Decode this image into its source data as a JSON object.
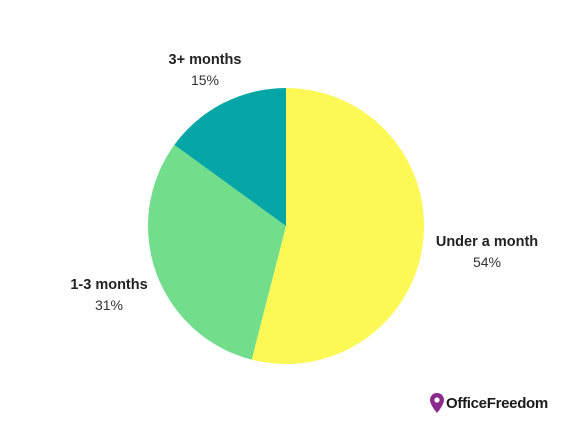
{
  "chart_data": {
    "type": "pie",
    "categories": [
      "Under a month",
      "1-3 months",
      "3+ months"
    ],
    "values": [
      54,
      31,
      15
    ],
    "value_labels": [
      "54%",
      "31%",
      "15%"
    ],
    "colors": [
      "#fcf956",
      "#72dd8b",
      "#05a6a5"
    ],
    "start": "12 o'clock",
    "direction": "clockwise"
  },
  "brand": {
    "name": "OfficeFreedom",
    "icon": "location-pin-icon",
    "icon_color": "#8a2b8c"
  }
}
